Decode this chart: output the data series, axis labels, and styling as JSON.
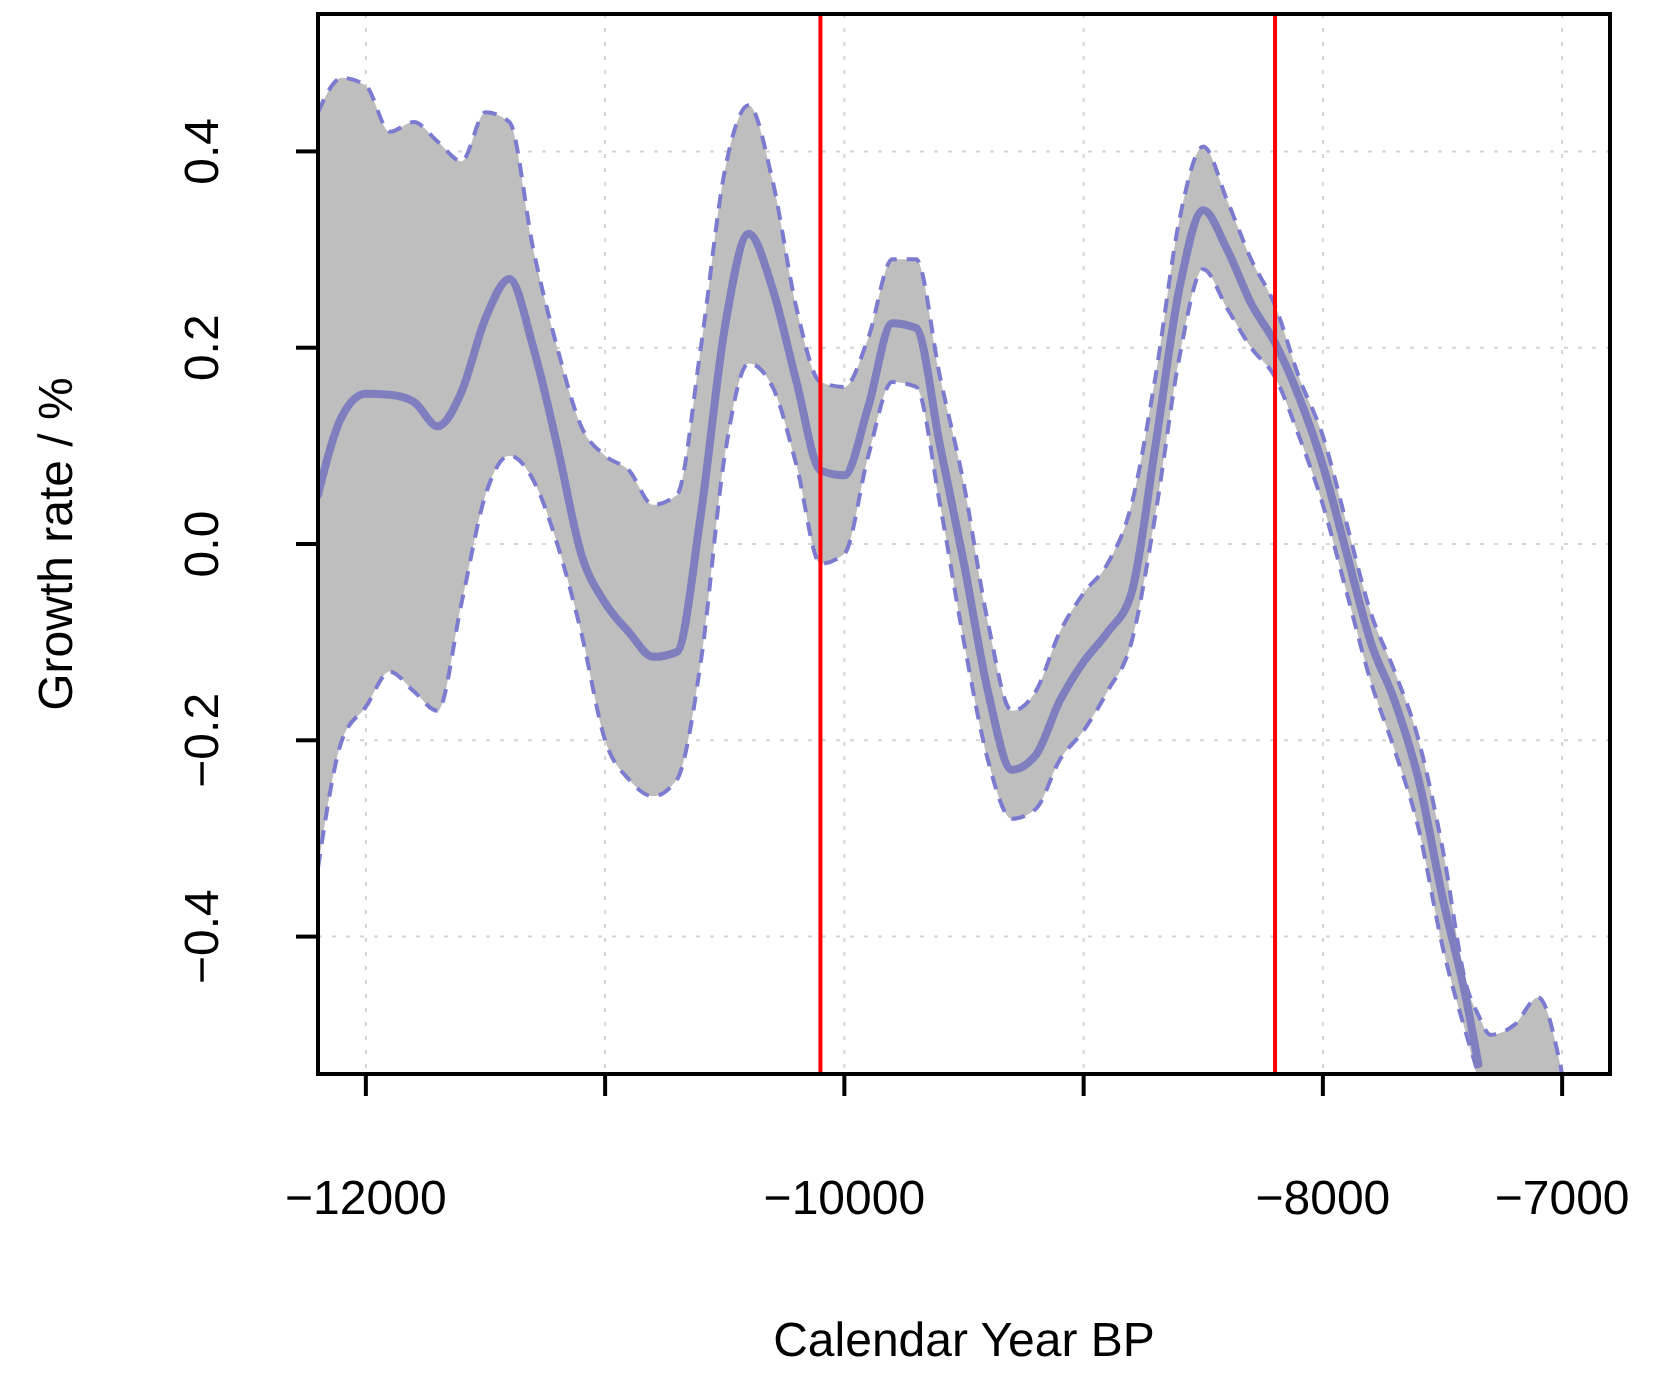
{
  "chart_data": {
    "type": "line",
    "xlabel": "Calendar Year BP",
    "ylabel": "Growth rate / %",
    "xlim": [
      -12200,
      -6800
    ],
    "ylim": [
      -0.54,
      0.54
    ],
    "xticks": [
      {
        "value": -12000,
        "label": "−12000"
      },
      {
        "value": -11000,
        "label": null
      },
      {
        "value": -10000,
        "label": "−10000"
      },
      {
        "value": -9000,
        "label": null
      },
      {
        "value": -8000,
        "label": "−8000"
      },
      {
        "value": -7000,
        "label": "−7000"
      }
    ],
    "yticks": [
      {
        "value": -0.4,
        "label": "−0.4"
      },
      {
        "value": -0.2,
        "label": "−0.2"
      },
      {
        "value": 0,
        "label": "0.0"
      },
      {
        "value": 0.2,
        "label": "0.2"
      },
      {
        "value": 0.4,
        "label": "0.4"
      }
    ],
    "grid": true,
    "line_style": "solid",
    "marker": "none",
    "ref_lines": [
      {
        "axis": "x",
        "value": -10100,
        "color": "#ff0000"
      },
      {
        "axis": "x",
        "value": -8200,
        "color": "#ff0000"
      }
    ],
    "x": [
      -12200,
      -12100,
      -12000,
      -11900,
      -11800,
      -11700,
      -11600,
      -11500,
      -11400,
      -11300,
      -11200,
      -11100,
      -11000,
      -10900,
      -10800,
      -10700,
      -10600,
      -10500,
      -10400,
      -10300,
      -10200,
      -10100,
      -10000,
      -9900,
      -9800,
      -9700,
      -9600,
      -9500,
      -9400,
      -9300,
      -9200,
      -9100,
      -9000,
      -8900,
      -8800,
      -8700,
      -8600,
      -8500,
      -8400,
      -8300,
      -8200,
      -8100,
      -8000,
      -7900,
      -7800,
      -7700,
      -7600,
      -7500,
      -7400,
      -7350,
      -7300,
      -7200,
      -7100,
      -7000
    ],
    "series": [
      {
        "color": "#7f7fbf",
        "values": [
          0.05,
          0.13,
          0.153,
          0.152,
          0.145,
          0.12,
          0.155,
          0.23,
          0.27,
          0.2,
          0.1,
          -0.01,
          -0.06,
          -0.09,
          -0.115,
          -0.11,
          0.03,
          0.22,
          0.316,
          0.26,
          0.165,
          0.075,
          0.07,
          0.14,
          0.225,
          0.22,
          0.1,
          -0.02,
          -0.15,
          -0.23,
          -0.215,
          -0.16,
          -0.12,
          -0.09,
          -0.05,
          0.1,
          0.26,
          0.34,
          0.3,
          0.245,
          0.205,
          0.15,
          0.08,
          -0.01,
          -0.1,
          -0.16,
          -0.24,
          -0.36,
          -0.465,
          -0.53,
          null,
          null,
          null,
          null
        ],
        "upper": [
          0.44,
          0.475,
          0.467,
          0.42,
          0.43,
          0.41,
          0.39,
          0.44,
          0.43,
          0.3,
          0.2,
          0.12,
          0.09,
          0.075,
          0.04,
          0.05,
          0.2,
          0.38,
          0.447,
          0.37,
          0.24,
          0.165,
          0.16,
          0.21,
          0.29,
          0.29,
          0.17,
          0.06,
          -0.08,
          -0.17,
          -0.15,
          -0.09,
          -0.05,
          -0.02,
          0.04,
          0.17,
          0.33,
          0.405,
          0.35,
          0.29,
          0.243,
          0.17,
          0.11,
          0.02,
          -0.07,
          -0.13,
          -0.2,
          -0.31,
          -0.45,
          -0.48,
          -0.5,
          -0.49,
          -0.462,
          -0.54
        ],
        "lower": [
          -0.33,
          -0.2,
          -0.166,
          -0.13,
          -0.15,
          -0.17,
          -0.06,
          0.05,
          0.09,
          0.065,
          0,
          -0.09,
          -0.2,
          -0.24,
          -0.257,
          -0.24,
          -0.12,
          0.09,
          0.184,
          0.16,
          0.08,
          -0.02,
          -0.01,
          0.09,
          0.165,
          0.16,
          0.04,
          -0.1,
          -0.22,
          -0.28,
          -0.27,
          -0.22,
          -0.19,
          -0.15,
          -0.1,
          0.03,
          0.19,
          0.28,
          0.24,
          0.2,
          0.17,
          0.11,
          0.04,
          -0.05,
          -0.14,
          -0.21,
          -0.29,
          -0.41,
          -0.5,
          -0.54,
          -0.54,
          -0.54,
          -0.54,
          -0.54
        ]
      },
      {
        "color": "#7b7bd0",
        "line_style": "dashed",
        "values": [
          0.44,
          0.475,
          0.467,
          0.42,
          0.43,
          0.41,
          0.39,
          0.44,
          0.43,
          0.3,
          0.2,
          0.12,
          0.09,
          0.075,
          0.04,
          0.05,
          0.2,
          0.38,
          0.447,
          0.37,
          0.24,
          0.165,
          0.16,
          0.21,
          0.29,
          0.29,
          0.17,
          0.06,
          -0.08,
          -0.17,
          -0.15,
          -0.09,
          -0.05,
          -0.02,
          0.04,
          0.17,
          0.33,
          0.405,
          0.35,
          0.29,
          0.243,
          0.17,
          0.11,
          0.02,
          -0.07,
          -0.13,
          -0.2,
          -0.31,
          -0.45,
          -0.48,
          -0.5,
          -0.49,
          -0.462,
          -0.54
        ]
      },
      {
        "color": "#7b7bd0",
        "line_style": "dashed",
        "values": [
          -0.33,
          -0.2,
          -0.166,
          -0.13,
          -0.15,
          -0.17,
          -0.06,
          0.05,
          0.09,
          0.065,
          0,
          -0.09,
          -0.2,
          -0.24,
          -0.257,
          -0.24,
          -0.12,
          0.09,
          0.184,
          0.16,
          0.08,
          -0.02,
          -0.01,
          0.09,
          0.165,
          0.16,
          0.04,
          -0.1,
          -0.22,
          -0.28,
          -0.27,
          -0.22,
          -0.19,
          -0.15,
          -0.1,
          0.03,
          0.19,
          0.28,
          0.24,
          0.2,
          0.17,
          0.11,
          0.04,
          -0.05,
          -0.14,
          -0.21,
          -0.29,
          -0.41,
          -0.5,
          -0.54,
          null,
          null,
          null,
          null
        ]
      }
    ]
  }
}
